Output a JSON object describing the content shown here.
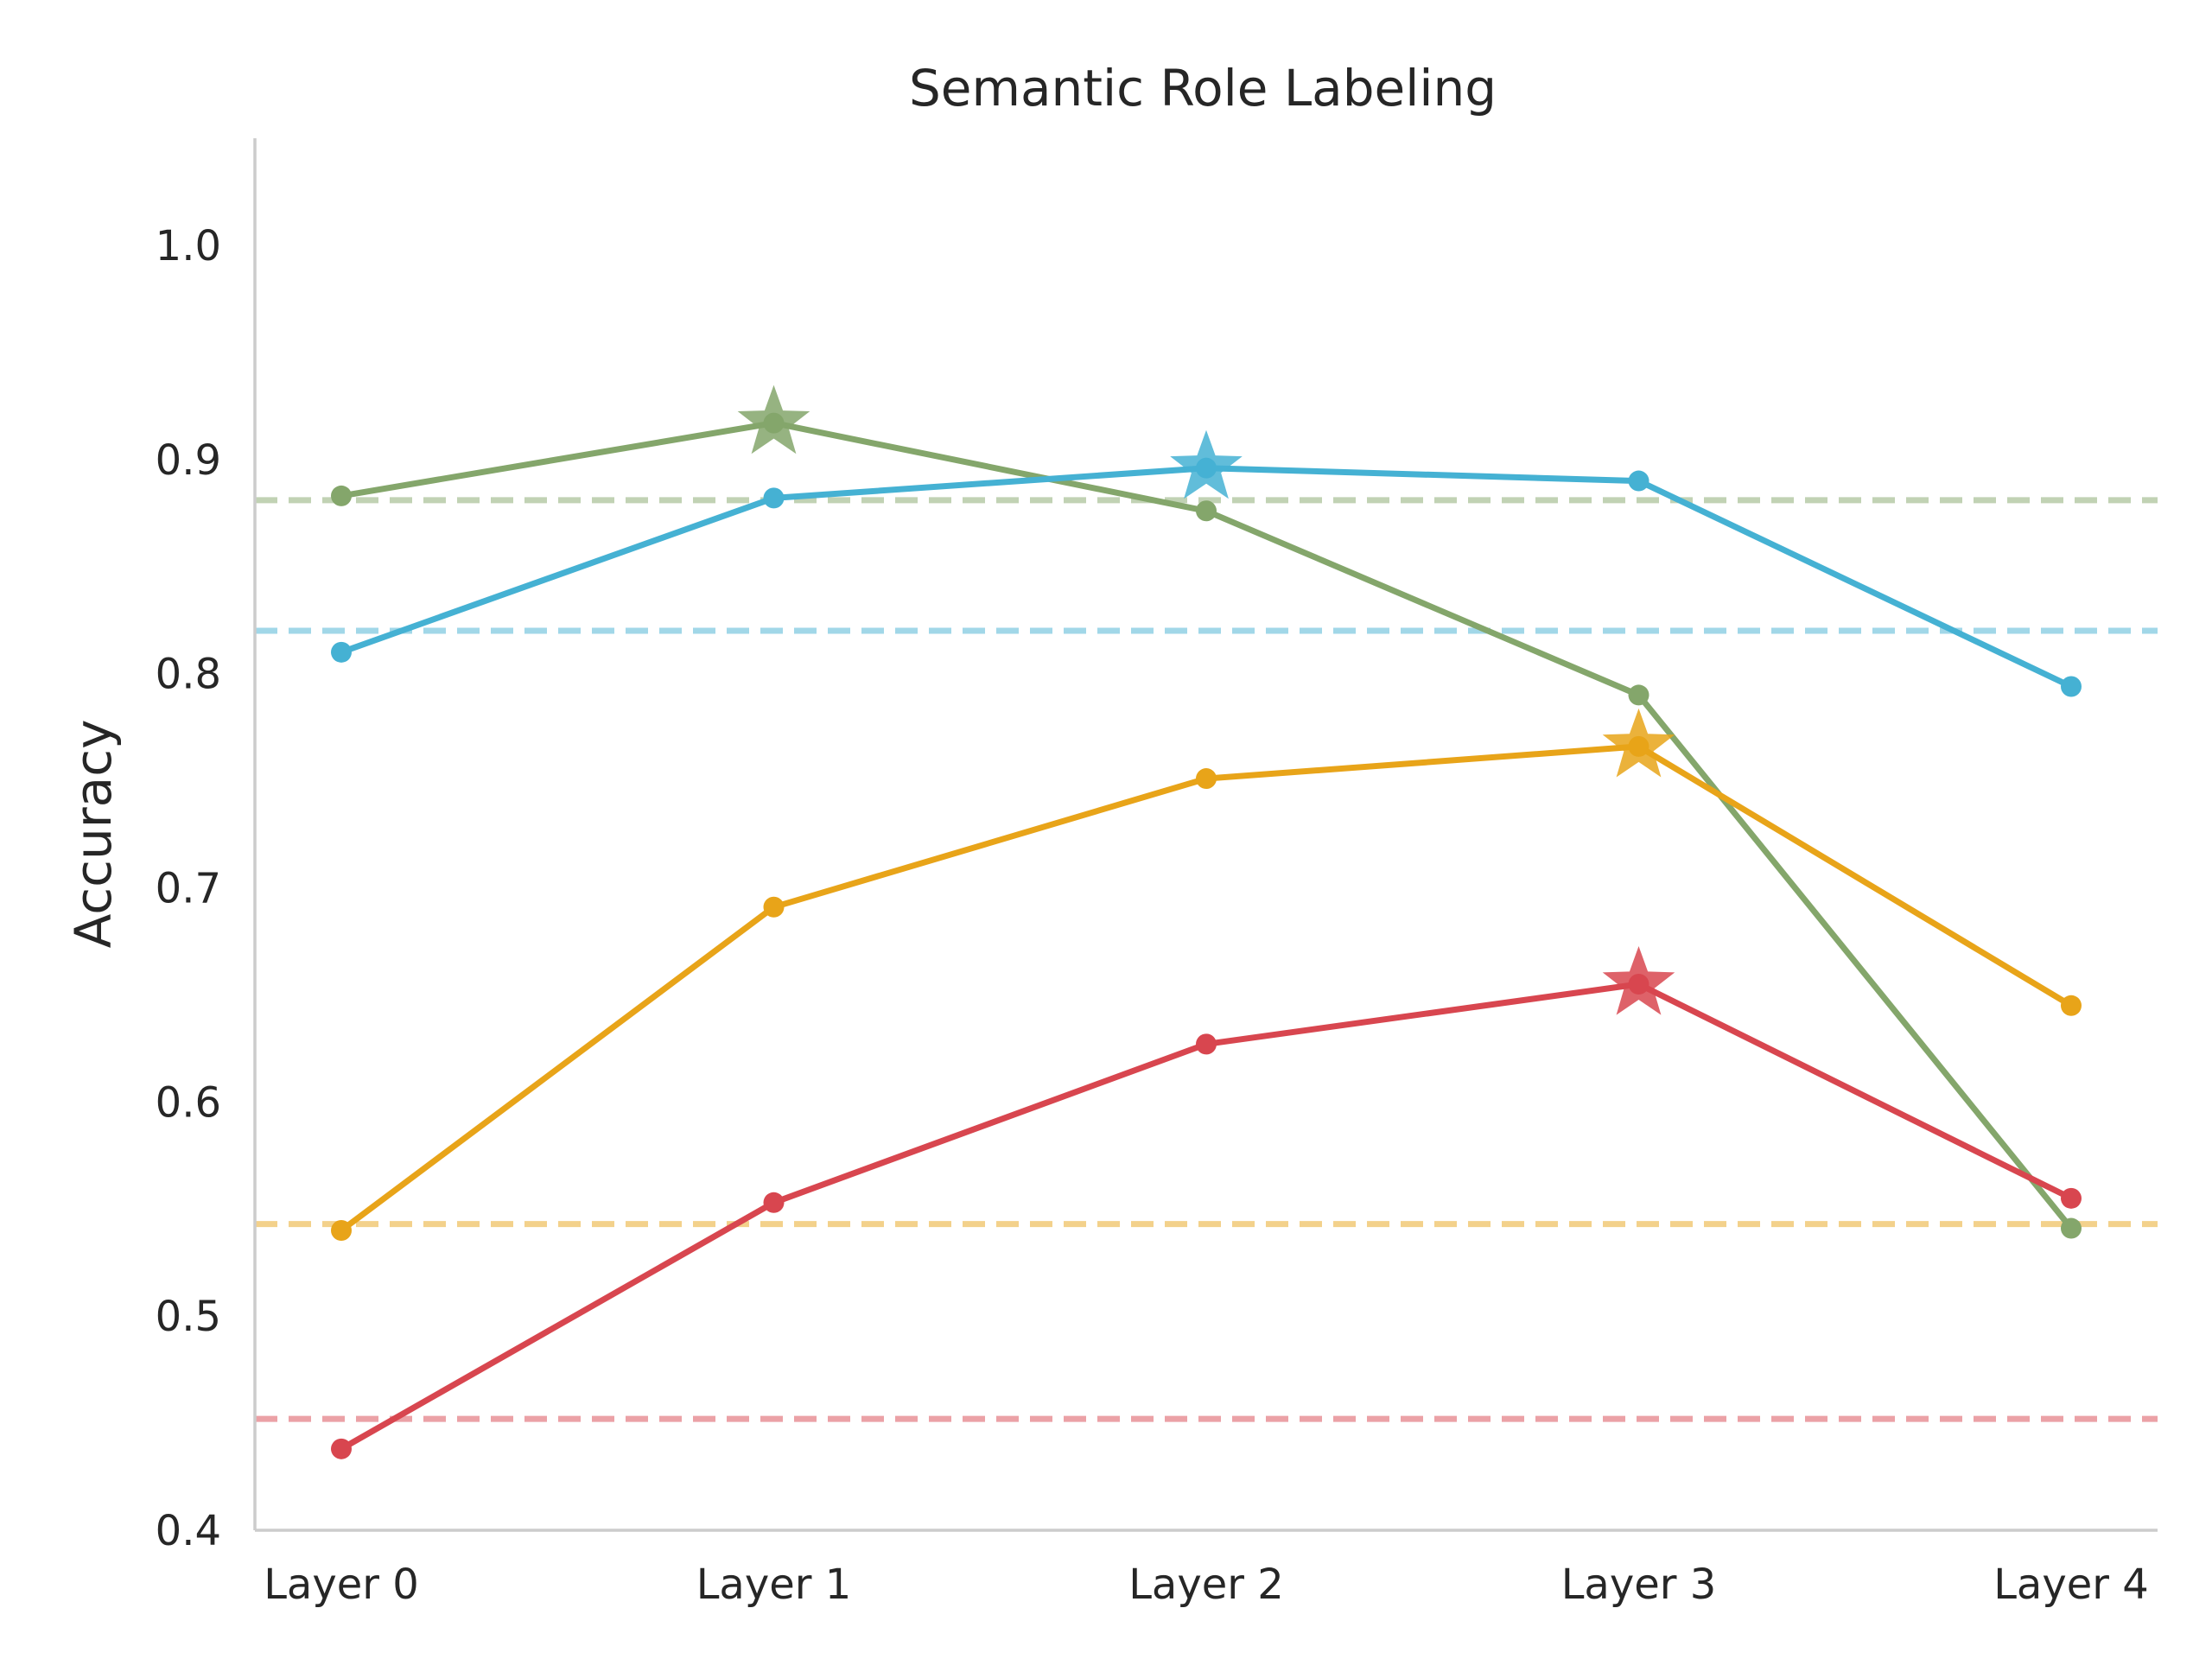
{
  "chart_data": {
    "type": "line",
    "title": "Semantic Role Labeling",
    "xlabel": "",
    "ylabel": "Accuracy",
    "categories": [
      "Layer 0",
      "Layer 1",
      "Layer 2",
      "Layer 3",
      "Layer 4"
    ],
    "ylim": [
      0.4,
      1.05
    ],
    "yticks": [
      0.4,
      0.5,
      0.6,
      0.7,
      0.8,
      0.9,
      1.0
    ],
    "ytick_labels": [
      "0.4",
      "0.5",
      "0.6",
      "0.7",
      "0.8",
      "0.9",
      "1.0"
    ],
    "grid": false,
    "legend": false,
    "series": [
      {
        "color": "#84a66b",
        "values": [
          0.883,
          0.917,
          0.876,
          0.79,
          0.541
        ],
        "best_index": 1,
        "baseline": 0.881
      },
      {
        "color": "#45b1d3",
        "values": [
          0.81,
          0.882,
          0.896,
          0.89,
          0.794
        ],
        "best_index": 2,
        "baseline": 0.82
      },
      {
        "color": "#e8a419",
        "values": [
          0.54,
          0.691,
          0.751,
          0.766,
          0.645
        ],
        "best_index": 3,
        "baseline": 0.543
      },
      {
        "color": "#d8464f",
        "values": [
          0.438,
          0.553,
          0.627,
          0.655,
          0.555
        ],
        "best_index": 3,
        "baseline": 0.452
      }
    ]
  }
}
